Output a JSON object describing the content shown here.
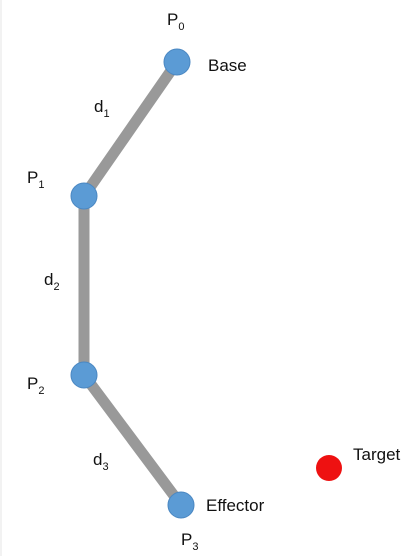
{
  "diagram": {
    "points": [
      {
        "symbol": "P",
        "subscript": "0",
        "annotation": "Base"
      },
      {
        "symbol": "P",
        "subscript": "1",
        "annotation": ""
      },
      {
        "symbol": "P",
        "subscript": "2",
        "annotation": ""
      },
      {
        "symbol": "P",
        "subscript": "3",
        "annotation": "Effector"
      }
    ],
    "links": [
      {
        "symbol": "d",
        "subscript": "1"
      },
      {
        "symbol": "d",
        "subscript": "2"
      },
      {
        "symbol": "d",
        "subscript": "3"
      }
    ],
    "target": {
      "label": "Target"
    },
    "colors": {
      "link": "#999999",
      "joint": "#5b9bd5",
      "target": "#ee1111"
    }
  }
}
